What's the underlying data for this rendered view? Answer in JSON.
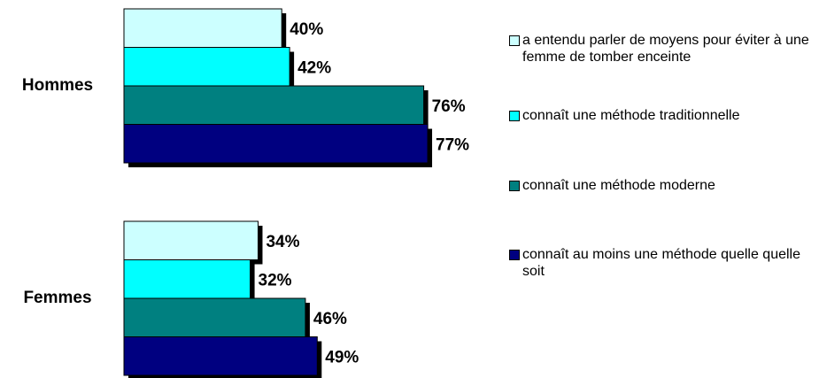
{
  "chart_data": {
    "type": "bar",
    "orientation": "horizontal",
    "categories": [
      "Hommes",
      "Femmes"
    ],
    "series": [
      {
        "name": "a entendu parler de moyens pour éviter à une femme de tomber enceinte",
        "color": "#ccffff",
        "values": [
          40,
          34
        ],
        "value_labels": [
          "40%",
          "34%"
        ]
      },
      {
        "name": "connaît une méthode traditionnelle",
        "color": "#00ffff",
        "values": [
          42,
          32
        ],
        "value_labels": [
          "42%",
          "32%"
        ]
      },
      {
        "name": "connaît une méthode moderne",
        "color": "#008080",
        "values": [
          76,
          46
        ],
        "value_labels": [
          "76%",
          "46%"
        ]
      },
      {
        "name": "connaît au moins une méthode quelle quelle soit",
        "color": "#000080",
        "values": [
          77,
          49
        ],
        "value_labels": [
          "77%",
          "49%"
        ]
      }
    ],
    "legend": "right"
  }
}
